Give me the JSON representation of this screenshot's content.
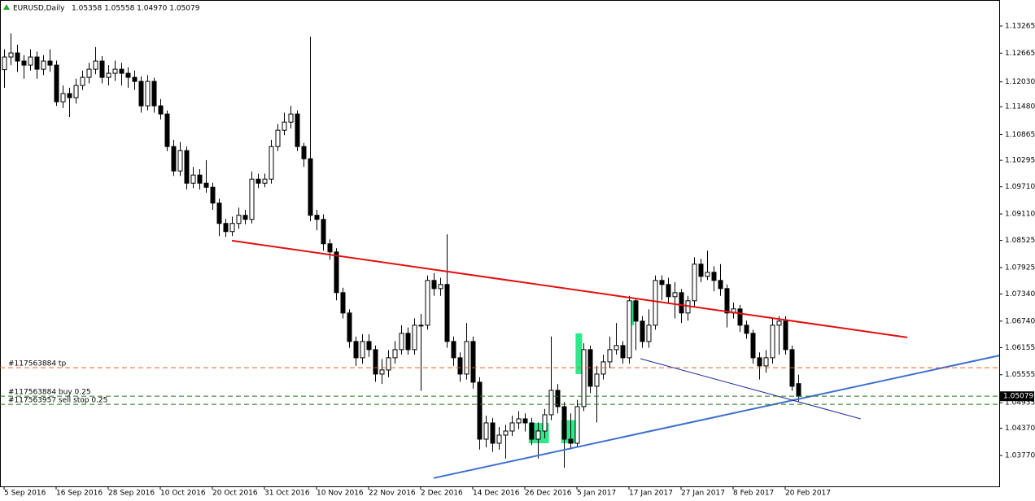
{
  "chart_data": {
    "type": "candlestick",
    "symbol": "EURUSD,Daily",
    "quote": "1.05358 1.05558 1.04970 1.05079",
    "up_color": "#ffffff",
    "down_color": "#000000",
    "categories": [
      "5 Sep 2016",
      null,
      null,
      null,
      null,
      null,
      null,
      null,
      "16 Sep 2016",
      null,
      null,
      null,
      null,
      null,
      null,
      null,
      "28 Sep 2016",
      null,
      null,
      null,
      null,
      null,
      null,
      null,
      "10 Oct 2016",
      null,
      null,
      null,
      null,
      null,
      null,
      null,
      "20 Oct 2016",
      null,
      null,
      null,
      null,
      null,
      null,
      null,
      "31 Oct 2016",
      null,
      null,
      null,
      null,
      null,
      null,
      null,
      "10 Nov 2016",
      null,
      null,
      null,
      null,
      null,
      null,
      null,
      "22 Nov 2016",
      null,
      null,
      null,
      null,
      null,
      null,
      null,
      "2 Dec 2016",
      null,
      null,
      null,
      null,
      null,
      null,
      null,
      "14 Dec 2016",
      null,
      null,
      null,
      null,
      null,
      null,
      null,
      "26 Dec 2016",
      null,
      null,
      null,
      null,
      null,
      null,
      null,
      "5 Jan 2017",
      null,
      null,
      null,
      null,
      null,
      null,
      null,
      "17 Jan 2017",
      null,
      null,
      null,
      null,
      null,
      null,
      null,
      "27 Jan 2017",
      null,
      null,
      null,
      null,
      null,
      null,
      null,
      "8 Feb 2017",
      null,
      null,
      null,
      null,
      null,
      null,
      null,
      "20 Feb 2017",
      null,
      null
    ],
    "open": [
      1.123,
      1.1258,
      1.1267,
      1.1249,
      1.124,
      1.1258,
      1.1231,
      1.1249,
      1.124,
      1.1159,
      1.1177,
      1.1168,
      1.1195,
      1.1213,
      1.1231,
      1.1249,
      1.1213,
      1.1222,
      1.1231,
      1.1222,
      1.1213,
      1.1204,
      1.115,
      1.1204,
      1.115,
      1.1132,
      1.106,
      1.1006,
      1.1051,
      1.0979,
      1.0997,
      1.0979,
      1.097,
      1.0935,
      1.089,
      1.0872,
      1.089,
      1.0908,
      1.0899,
      1.0988,
      1.0979,
      1.0988,
      1.106,
      1.1096,
      1.1114,
      1.1132,
      1.106,
      1.1033,
      1.0908,
      1.0899,
      1.0845,
      1.0827,
      1.0737,
      1.0692,
      1.0629,
      1.0593,
      1.0629,
      1.0611,
      1.0557,
      1.0566,
      1.0593,
      1.0611,
      1.0647,
      1.0611,
      1.0665,
      1.0665,
      1.0764,
      1.0746,
      1.0755,
      1.0629,
      1.0593,
      1.0557,
      1.0629,
      1.0539,
      1.0413,
      1.0449,
      1.0404,
      1.0422,
      1.0431,
      1.0449,
      1.0458,
      1.0449,
      1.0413,
      1.0431,
      1.0467,
      1.0521,
      1.0485,
      1.0413,
      1.0404,
      1.0485,
      1.0611,
      1.053,
      1.0557,
      1.0584,
      1.0611,
      1.062,
      1.0593,
      1.0719,
      1.0674,
      1.0629,
      1.0665,
      1.0764,
      1.0755,
      1.0728,
      1.0737,
      1.0692,
      1.0719,
      1.08,
      1.0773,
      1.0782,
      1.0764,
      1.0746,
      1.0692,
      1.0701,
      1.0665,
      1.0647,
      1.0593,
      1.0575,
      1.0593,
      1.0665,
      1.0674,
      1.0611,
      1.05358
    ],
    "high": [
      1.1275,
      1.131,
      1.1285,
      1.1262,
      1.1275,
      1.127,
      1.1262,
      1.1275,
      1.125,
      1.1195,
      1.119,
      1.121,
      1.1228,
      1.1245,
      1.128,
      1.126,
      1.124,
      1.125,
      1.1245,
      1.1235,
      1.1228,
      1.1215,
      1.1218,
      1.1212,
      1.1165,
      1.114,
      1.1075,
      1.107,
      1.106,
      1.1015,
      1.101,
      1.103,
      1.098,
      1.0945,
      1.09,
      1.0905,
      1.0925,
      1.092,
      1.1005,
      1.1,
      1.1,
      1.1075,
      1.111,
      1.1135,
      1.115,
      1.114,
      1.1068,
      1.1303,
      1.092,
      1.091,
      1.0855,
      1.0835,
      1.0748,
      1.07,
      1.064,
      1.0645,
      1.0645,
      1.062,
      1.059,
      1.061,
      1.063,
      1.0665,
      1.066,
      1.068,
      1.069,
      1.0775,
      1.078,
      1.077,
      1.0866,
      1.064,
      1.0605,
      1.067,
      1.064,
      1.055,
      1.0465,
      1.046,
      1.044,
      1.0445,
      1.0465,
      1.0475,
      1.047,
      1.046,
      1.045,
      1.048,
      1.064,
      1.0535,
      1.0495,
      1.047,
      1.05,
      1.0625,
      1.062,
      1.0575,
      1.06,
      1.064,
      1.067,
      1.063,
      1.073,
      1.0725,
      1.0685,
      1.07,
      1.0775,
      1.0775,
      1.077,
      1.076,
      1.0745,
      1.073,
      1.0815,
      1.0812,
      1.083,
      1.0795,
      1.08,
      1.0755,
      1.0715,
      1.071,
      1.0675,
      1.0655,
      1.0605,
      1.061,
      1.068,
      1.0685,
      1.0685,
      1.062,
      1.05558
    ],
    "low": [
      1.119,
      1.124,
      1.1225,
      1.121,
      1.1228,
      1.121,
      1.1218,
      1.1225,
      1.115,
      1.1145,
      1.1125,
      1.1155,
      1.1185,
      1.12,
      1.122,
      1.12,
      1.1195,
      1.1205,
      1.1195,
      1.119,
      1.1185,
      1.1135,
      1.114,
      1.1135,
      1.112,
      1.105,
      1.0995,
      1.0995,
      1.0965,
      1.0968,
      1.0965,
      1.0958,
      1.092,
      1.0862,
      1.086,
      1.0862,
      1.0878,
      1.0888,
      1.089,
      1.0968,
      1.097,
      1.0978,
      1.105,
      1.1085,
      1.11,
      1.105,
      1.1015,
      1.0895,
      1.0875,
      1.083,
      1.081,
      1.072,
      1.068,
      1.0615,
      1.0575,
      1.058,
      1.0595,
      1.054,
      1.0535,
      1.055,
      1.058,
      1.06,
      1.06,
      1.06,
      1.052,
      1.0655,
      1.073,
      1.073,
      1.0615,
      1.0575,
      1.054,
      1.0545,
      1.0525,
      1.039,
      1.0395,
      1.0385,
      1.039,
      1.037,
      1.042,
      1.0435,
      1.043,
      1.04,
      1.037,
      1.0415,
      1.0455,
      1.047,
      1.035,
      1.039,
      1.0395,
      1.0475,
      1.0515,
      1.045,
      1.0545,
      1.057,
      1.06,
      1.058,
      1.058,
      1.061,
      1.0615,
      1.0615,
      1.0655,
      1.072,
      1.0715,
      1.068,
      1.067,
      1.0675,
      1.0705,
      1.076,
      1.0765,
      1.074,
      1.073,
      1.066,
      1.068,
      1.065,
      1.0635,
      1.058,
      1.0545,
      1.056,
      1.058,
      1.06,
      1.06,
      1.052,
      1.0497
    ],
    "close": [
      1.1258,
      1.1267,
      1.1249,
      1.124,
      1.1258,
      1.1231,
      1.1249,
      1.124,
      1.1159,
      1.1177,
      1.1168,
      1.1195,
      1.1213,
      1.1231,
      1.1249,
      1.1213,
      1.1222,
      1.1231,
      1.1222,
      1.1213,
      1.1204,
      1.115,
      1.1204,
      1.115,
      1.1132,
      1.106,
      1.1006,
      1.1051,
      1.0979,
      1.0997,
      1.0979,
      1.097,
      1.0935,
      1.089,
      1.0872,
      1.089,
      1.0908,
      1.0899,
      1.0988,
      1.0979,
      1.0988,
      1.106,
      1.1096,
      1.1114,
      1.1132,
      1.106,
      1.1033,
      1.0908,
      1.0899,
      1.0845,
      1.0827,
      1.0737,
      1.0692,
      1.0629,
      1.0593,
      1.0629,
      1.0611,
      1.0557,
      1.0566,
      1.0593,
      1.0611,
      1.0647,
      1.0611,
      1.0665,
      1.0665,
      1.0764,
      1.0746,
      1.0755,
      1.0629,
      1.0593,
      1.0557,
      1.0629,
      1.0539,
      1.0413,
      1.0449,
      1.0404,
      1.0422,
      1.0431,
      1.0449,
      1.0458,
      1.0449,
      1.0413,
      1.0431,
      1.0467,
      1.0521,
      1.0485,
      1.0413,
      1.0404,
      1.0485,
      1.0611,
      1.053,
      1.0557,
      1.0584,
      1.0611,
      1.062,
      1.0593,
      1.0719,
      1.0674,
      1.0629,
      1.0665,
      1.0764,
      1.0755,
      1.0728,
      1.0737,
      1.0692,
      1.0719,
      1.08,
      1.0773,
      1.0782,
      1.0764,
      1.0746,
      1.0692,
      1.0701,
      1.0665,
      1.0647,
      1.0593,
      1.0575,
      1.0593,
      1.0665,
      1.0674,
      1.0611,
      1.053,
      1.05079
    ],
    "ylim": [
      1.03087,
      1.1384
    ],
    "yticks": [
      1.13265,
      1.12665,
      {
        "value": 1.1203,
        "label": "1.12030"
      },
      {
        "value": 1.1148,
        "label": "1.11480"
      },
      1.10865,
      1.10295,
      {
        "value": 1.0971,
        "label": "1.09710"
      },
      {
        "value": 1.0911,
        "label": "1.09110"
      },
      1.08525,
      1.07925,
      {
        "value": 1.0734,
        "label": "1.07340"
      },
      {
        "value": 1.0674,
        "label": "1.06740"
      },
      1.06155,
      1.05555,
      1.04935,
      {
        "value": 1.0437,
        "label": "1.04370"
      },
      {
        "value": 1.0377,
        "label": "1.03770"
      }
    ],
    "lines": [
      {
        "color": "#e01010",
        "x": [
          35,
          138.75
        ],
        "y": [
          1.0852,
          1.0638
        ]
      },
      {
        "color": "#3f6fd0",
        "x": [
          66,
          152.9
        ],
        "y": [
          1.0327,
          1.0598
        ]
      },
      {
        "color": "#1c2a9a",
        "x": [
          97.75,
          131.6
        ],
        "y": [
          1.0591,
          1.0458
        ]
      }
    ],
    "highlights": {
      "color": "#2ee88a",
      "boxes": [
        {
          "x": [
            80.6,
            83.7
          ],
          "y": [
            1.0404,
            1.0449
          ]
        },
        {
          "x": [
            85.6,
            87.7
          ],
          "y": [
            1.0404,
            1.0455
          ]
        },
        {
          "x": [
            87.8,
            88.8
          ],
          "y": [
            1.0557,
            1.0647
          ]
        },
        {
          "x": [
            95.8,
            96.8
          ],
          "y": [
            1.0665,
            1.0719
          ]
        }
      ]
    },
    "orders": [
      {
        "label": "#117563884 tp",
        "price": 1.0571,
        "color": "#e8602c"
      },
      {
        "label": "#117563884 buy 0.25",
        "price": 1.0508,
        "color": "#1a7a1a"
      },
      {
        "label": "#117563957 sell stop 0.25",
        "price": 1.049,
        "color": "#1a7a1a"
      }
    ]
  }
}
